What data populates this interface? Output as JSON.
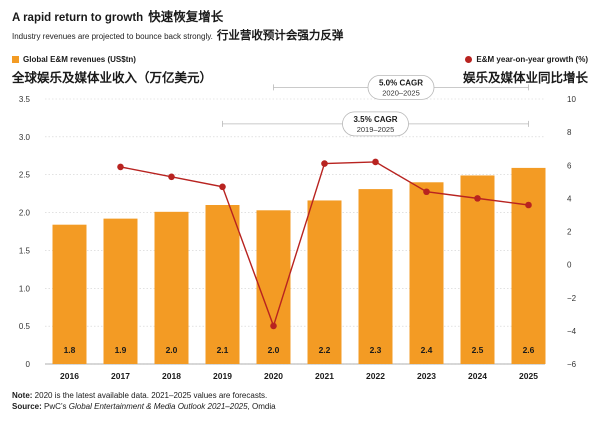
{
  "header": {
    "title_en": "A rapid return to growth",
    "title_zh": "快速恢复增长",
    "subtitle_en": "Industry revenues are projected to bounce back strongly.",
    "subtitle_zh": "行业营收预计会强力反弹"
  },
  "chart_data": {
    "type": "bar",
    "categories": [
      "2016",
      "2017",
      "2018",
      "2019",
      "2020",
      "2021",
      "2022",
      "2023",
      "2024",
      "2025"
    ],
    "series": [
      {
        "name": "Global E&M revenues (US$tn)",
        "type": "bar",
        "axis": "left",
        "values": [
          1.8,
          1.9,
          2.0,
          2.1,
          2.0,
          2.2,
          2.3,
          2.4,
          2.5,
          2.6
        ],
        "plot_values": [
          1.84,
          1.92,
          2.01,
          2.1,
          2.03,
          2.16,
          2.31,
          2.4,
          2.49,
          2.59
        ],
        "labels": [
          "1.8",
          "1.9",
          "2.0",
          "2.1",
          "2.0",
          "2.2",
          "2.3",
          "2.4",
          "2.5",
          "2.6"
        ],
        "color": "#f39b24"
      },
      {
        "name": "E&M year-on-year growth (%)",
        "type": "line",
        "axis": "right",
        "values": [
          null,
          5.9,
          5.3,
          4.7,
          -3.7,
          6.1,
          6.2,
          4.4,
          4.0,
          3.6
        ],
        "color": "#b82320"
      }
    ],
    "left_axis": {
      "label": "全球娱乐及媒体业收入（万亿美元）",
      "ylim": [
        0,
        3.5
      ],
      "ticks": [
        "0",
        "0.5",
        "1.0",
        "1.5",
        "2.0",
        "2.5",
        "3.0",
        "3.5"
      ],
      "tick_values": [
        0,
        0.5,
        1,
        1.5,
        2,
        2.5,
        3,
        3.5
      ]
    },
    "right_axis": {
      "label": "娱乐及媒体业同比增长",
      "ylim": [
        -6,
        10
      ],
      "ticks": [
        "10",
        "8",
        "6",
        "4",
        "2",
        "0",
        "−2",
        "−4",
        "−6"
      ],
      "tick_values": [
        10,
        8,
        6,
        4,
        2,
        0,
        -2,
        -4,
        -6
      ]
    },
    "annotations": [
      {
        "label": "5.0% CAGR",
        "range": "2020–2025",
        "from": "2020",
        "to": "2025",
        "level": 10.7
      },
      {
        "label": "3.5% CAGR",
        "range": "2019–2025",
        "from": "2019",
        "to": "2025",
        "level": 8.5
      }
    ],
    "grid": true,
    "colors": {
      "bar": "#f39b24",
      "line": "#b82320",
      "grid": "#d0d0d0",
      "bracket": "#b8b8b8"
    }
  },
  "footnote": {
    "note_label": "Note:",
    "note_text": " 2020 is the latest available data. 2021–2025 values are forecasts.",
    "source_label": "Source:",
    "source_text_1": " PwC’s ",
    "source_italic": "Global Entertainment & Media Outlook 2021–2025",
    "source_text_2": ", Omdia"
  }
}
